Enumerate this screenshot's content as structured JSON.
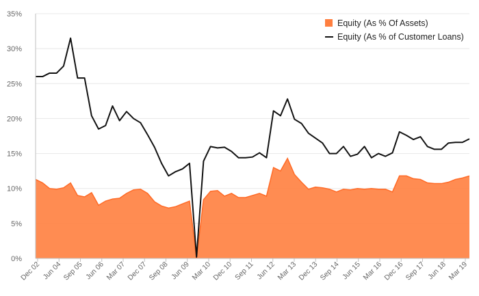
{
  "chart_data": {
    "type": "area",
    "title": "",
    "xlabel": "",
    "ylabel": "",
    "ylim": [
      0,
      35
    ],
    "yticks": [
      "0%",
      "5%",
      "10%",
      "15%",
      "20%",
      "25%",
      "30%",
      "35%"
    ],
    "ytick_values": [
      0,
      5,
      10,
      15,
      20,
      25,
      30,
      35
    ],
    "xtick_labels": [
      "Dec 02",
      "Jun 04",
      "Sep 05",
      "Jun 06",
      "Mar 07",
      "Dec 07",
      "Sep 08",
      "Jun 09",
      "Mar 10",
      "Dec 10",
      "Sep 11",
      "Jun 12",
      "Mar 13",
      "Dec 13",
      "Sep 14",
      "Jun 15",
      "Mar 16",
      "Dec 16",
      "Sep 17",
      "Jun 18",
      "Mar 19"
    ],
    "grid": true,
    "legend_position": "top-right",
    "colors": {
      "assets": "#ff7f3f",
      "assets_line": "#ff6a26",
      "loans": "#111111"
    },
    "series": [
      {
        "name": "Equity (As % Of Assets)",
        "type": "area",
        "values": [
          11.3,
          10.8,
          10.0,
          9.9,
          10.1,
          10.8,
          9.0,
          8.8,
          9.4,
          7.6,
          8.2,
          8.5,
          8.6,
          9.3,
          9.8,
          9.9,
          9.3,
          8.1,
          7.5,
          7.2,
          7.4,
          7.8,
          8.2,
          0.0,
          8.4,
          9.6,
          9.7,
          8.9,
          9.3,
          8.7,
          8.7,
          9.0,
          9.3,
          8.9,
          13.0,
          12.5,
          14.3,
          12.0,
          10.9,
          9.9,
          10.2,
          10.1,
          9.9,
          9.5,
          9.9,
          9.8,
          10.0,
          9.9,
          10.0,
          9.9,
          9.9,
          9.5,
          11.8,
          11.8,
          11.4,
          11.3,
          10.8,
          10.7,
          10.7,
          10.9,
          11.3,
          11.5,
          11.8
        ]
      },
      {
        "name": "Equity (As % of Customer Loans)",
        "type": "line",
        "values": [
          26.0,
          26.0,
          26.5,
          26.5,
          27.5,
          31.5,
          25.8,
          25.8,
          20.4,
          18.5,
          19.0,
          21.8,
          19.7,
          21.0,
          20.0,
          19.4,
          17.7,
          15.9,
          13.6,
          11.8,
          12.4,
          12.8,
          13.6,
          0.2,
          13.9,
          16.0,
          15.8,
          15.9,
          15.3,
          14.4,
          14.4,
          14.5,
          15.1,
          14.4,
          21.1,
          20.4,
          22.8,
          19.9,
          19.3,
          17.9,
          17.2,
          16.5,
          15.0,
          15.0,
          16.0,
          14.6,
          14.9,
          16.0,
          14.4,
          15.0,
          14.6,
          15.1,
          18.1,
          17.6,
          17.0,
          17.4,
          16.0,
          15.6,
          15.6,
          16.5,
          16.6,
          16.6,
          17.1
        ]
      }
    ]
  }
}
